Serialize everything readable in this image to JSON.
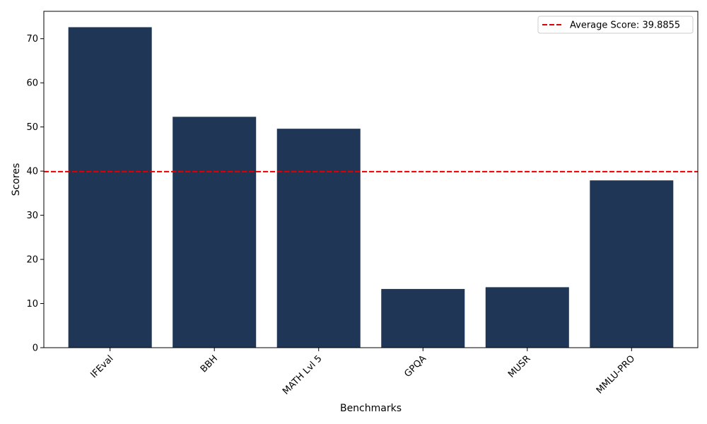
{
  "chart_data": {
    "type": "bar",
    "categories": [
      "IFEval",
      "BBH",
      "MATH Lvl 5",
      "GPQA",
      "MUSR",
      "MMLU-PRO"
    ],
    "values": [
      72.6,
      52.3,
      49.6,
      13.3,
      13.7,
      37.9
    ],
    "xlabel": "Benchmarks",
    "ylabel": "Scores",
    "ylim": [
      0,
      76.2
    ],
    "yticks": [
      0,
      10,
      20,
      30,
      40,
      50,
      60,
      70
    ],
    "bar_color": "#1f3657",
    "grid": false,
    "reference_line": {
      "value": 39.8855,
      "label": "Average Score: 39.8855",
      "color": "#e00000",
      "style": "dashed"
    },
    "legend_position": "top-right"
  }
}
